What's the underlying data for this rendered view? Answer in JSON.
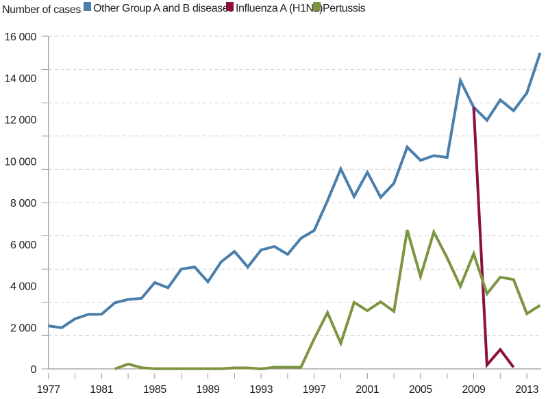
{
  "chart_data": {
    "type": "line",
    "title": "",
    "ylabel": "Number of cases",
    "xlabel": "",
    "xlim": [
      1977,
      2014
    ],
    "ylim": [
      0,
      16000
    ],
    "x_tick_labels": [
      "1977",
      "1981",
      "1985",
      "1989",
      "1993",
      "1997",
      "2001",
      "2005",
      "2009",
      "2013"
    ],
    "y_tick_labels": [
      "0",
      "2 000",
      "4 000",
      "6 000",
      "8 000",
      "10 000",
      "12 000",
      "14 000",
      "16 000"
    ],
    "y_tick_values": [
      0,
      2000,
      4000,
      6000,
      8000,
      10000,
      12000,
      14000,
      16000
    ],
    "grid": true,
    "legend_placement": "top",
    "series": [
      {
        "name": "Other Group A and B diseases",
        "color": "#4a7eab",
        "x": [
          1977,
          1978,
          1979,
          1980,
          1981,
          1982,
          1983,
          1984,
          1985,
          1986,
          1987,
          1988,
          1989,
          1990,
          1991,
          1992,
          1993,
          1994,
          1995,
          1996,
          1997,
          1998,
          1999,
          2000,
          2001,
          2002,
          2003,
          2004,
          2005,
          2006,
          2007,
          2008,
          2009,
          2010,
          2011,
          2012,
          2013,
          2014
        ],
        "values": [
          2070,
          1980,
          2410,
          2620,
          2630,
          3180,
          3340,
          3390,
          4150,
          3900,
          4800,
          4900,
          4190,
          5150,
          5650,
          4900,
          5720,
          5890,
          5510,
          6280,
          6660,
          8090,
          9620,
          8290,
          9460,
          8250,
          8930,
          10670,
          10030,
          10260,
          10170,
          13870,
          12590,
          11960,
          12940,
          12420,
          13270,
          15200
        ]
      },
      {
        "name": "Influenza A (H1N1)",
        "color": "#8b1040",
        "x": [
          2009,
          2010,
          2011,
          2012
        ],
        "values": [
          12590,
          190,
          930,
          75
        ]
      },
      {
        "name": "Pertussis",
        "color": "#7d9440",
        "x": [
          1982,
          1983,
          1984,
          1985,
          1986,
          1987,
          1988,
          1989,
          1990,
          1991,
          1992,
          1993,
          1994,
          1995,
          1996,
          1997,
          1998,
          1999,
          2000,
          2001,
          2002,
          2003,
          2004,
          2005,
          2006,
          2007,
          2008,
          2009,
          2010,
          2011,
          2012,
          2013,
          2014
        ],
        "values": [
          0,
          230,
          60,
          10,
          10,
          10,
          10,
          10,
          10,
          50,
          50,
          0,
          80,
          80,
          80,
          1450,
          2710,
          1230,
          3200,
          2800,
          3225,
          2765,
          6680,
          4440,
          6580,
          5345,
          3970,
          5540,
          3610,
          4410,
          4300,
          2655,
          3060
        ]
      }
    ]
  }
}
